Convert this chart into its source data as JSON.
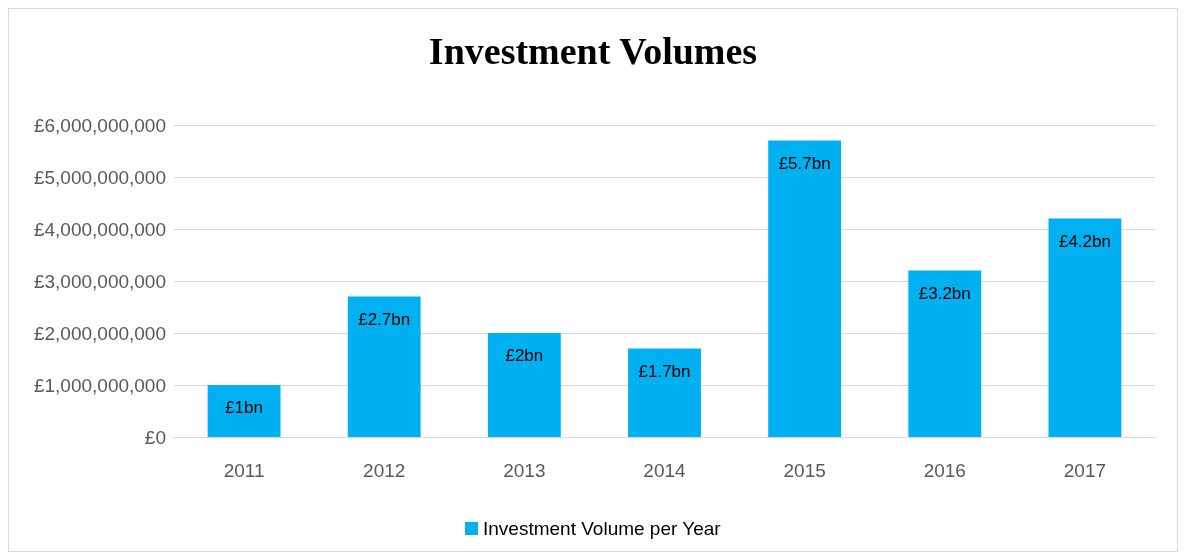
{
  "chart_data": {
    "type": "bar",
    "title": "Investment Volumes",
    "categories": [
      "2011",
      "2012",
      "2013",
      "2014",
      "2015",
      "2016",
      "2017"
    ],
    "series": [
      {
        "name": "Investment Volume per Year",
        "color": "#00b0f0",
        "values": [
          1000000000,
          2700000000,
          2000000000,
          1700000000,
          5700000000,
          3200000000,
          4200000000
        ],
        "value_labels": [
          "£1bn",
          "£2.7bn",
          "£2bn",
          "£1.7bn",
          "£5.7bn",
          "£3.2bn",
          "£4.2bn"
        ]
      }
    ],
    "ylim": [
      0,
      6000000000
    ],
    "yticks": [
      {
        "value": 0,
        "label": "£0"
      },
      {
        "value": 1000000000,
        "label": "£1,000,000,000"
      },
      {
        "value": 2000000000,
        "label": "£2,000,000,000"
      },
      {
        "value": 3000000000,
        "label": "£3,000,000,000"
      },
      {
        "value": 4000000000,
        "label": "£4,000,000,000"
      },
      {
        "value": 5000000000,
        "label": "£5,000,000,000"
      },
      {
        "value": 6000000000,
        "label": "£6,000,000,000"
      }
    ],
    "grid": "y",
    "legend": "bottom"
  }
}
